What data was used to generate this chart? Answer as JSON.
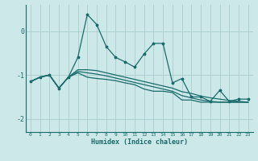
{
  "xlabel": "Humidex (Indice chaleur)",
  "bg_color": "#cce8e8",
  "grid_color": "#aacccc",
  "line_color": "#1a6b6b",
  "xlim": [
    -0.5,
    23.5
  ],
  "ylim": [
    -2.3,
    0.6
  ],
  "yticks": [
    -2,
    -1,
    0
  ],
  "xticks": [
    0,
    1,
    2,
    3,
    4,
    5,
    6,
    7,
    8,
    9,
    10,
    11,
    12,
    13,
    14,
    15,
    16,
    17,
    18,
    19,
    20,
    21,
    22,
    23
  ],
  "x": [
    0,
    1,
    2,
    3,
    4,
    5,
    6,
    7,
    8,
    9,
    10,
    11,
    12,
    13,
    14,
    15,
    16,
    17,
    18,
    19,
    20,
    21,
    22,
    23
  ],
  "series_main": [
    -1.15,
    -1.05,
    -1.0,
    -1.3,
    -1.05,
    -0.6,
    0.38,
    0.15,
    -0.35,
    -0.6,
    -0.7,
    -0.82,
    -0.52,
    -0.28,
    -0.28,
    -1.18,
    -1.08,
    -1.5,
    -1.5,
    -1.6,
    -1.35,
    -1.6,
    -1.55,
    -1.55
  ],
  "series_trend1": [
    -1.15,
    -1.05,
    -1.0,
    -1.3,
    -1.05,
    -0.88,
    -0.88,
    -0.9,
    -0.95,
    -1.0,
    -1.05,
    -1.1,
    -1.15,
    -1.2,
    -1.25,
    -1.3,
    -1.38,
    -1.42,
    -1.48,
    -1.52,
    -1.55,
    -1.58,
    -1.6,
    -1.62
  ],
  "series_trend2": [
    -1.15,
    -1.05,
    -1.0,
    -1.3,
    -1.05,
    -0.92,
    -0.95,
    -0.98,
    -1.02,
    -1.07,
    -1.12,
    -1.17,
    -1.22,
    -1.27,
    -1.32,
    -1.37,
    -1.47,
    -1.52,
    -1.57,
    -1.6,
    -1.62,
    -1.62,
    -1.62,
    -1.62
  ],
  "series_trend3": [
    -1.15,
    -1.05,
    -1.0,
    -1.3,
    -1.05,
    -0.95,
    -1.05,
    -1.08,
    -1.1,
    -1.13,
    -1.18,
    -1.22,
    -1.32,
    -1.37,
    -1.37,
    -1.4,
    -1.57,
    -1.57,
    -1.62,
    -1.62,
    -1.62,
    -1.62,
    -1.62,
    -1.62
  ]
}
